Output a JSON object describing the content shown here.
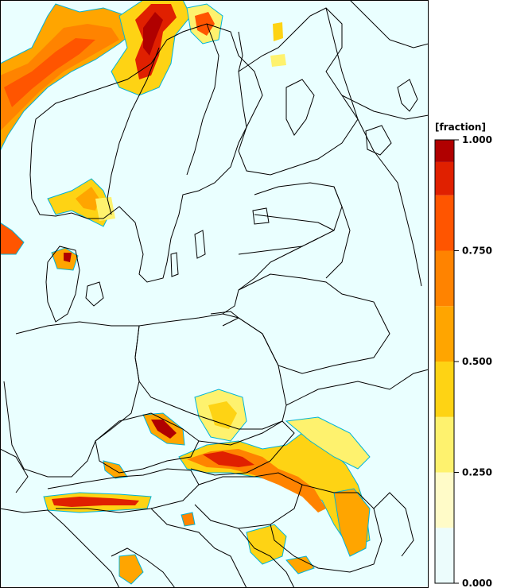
{
  "legend": {
    "unit": "[fraction]",
    "ticks": [
      "1.000",
      "0.750",
      "0.500",
      "0.250",
      "0.000"
    ],
    "tick_values": [
      1.0,
      0.75,
      0.5,
      0.25,
      0.0
    ],
    "bins": [
      {
        "from": 0.0,
        "to": 0.125,
        "color": "#ecfcfc"
      },
      {
        "from": 0.125,
        "to": 0.25,
        "color": "#fffbc8"
      },
      {
        "from": 0.25,
        "to": 0.375,
        "color": "#fef26e"
      },
      {
        "from": 0.375,
        "to": 0.5,
        "color": "#fed314"
      },
      {
        "from": 0.5,
        "to": 0.625,
        "color": "#ffa500"
      },
      {
        "from": 0.625,
        "to": 0.75,
        "color": "#ff8300"
      },
      {
        "from": 0.75,
        "to": 0.875,
        "color": "#ff5500"
      },
      {
        "from": 0.875,
        "to": 0.95,
        "color": "#e02000"
      },
      {
        "from": 0.95,
        "to": 1.0,
        "color": "#b00000"
      }
    ]
  },
  "colors": {
    "water": "#eaffff",
    "border": "#000000",
    "contour": "#00b4d8"
  }
}
